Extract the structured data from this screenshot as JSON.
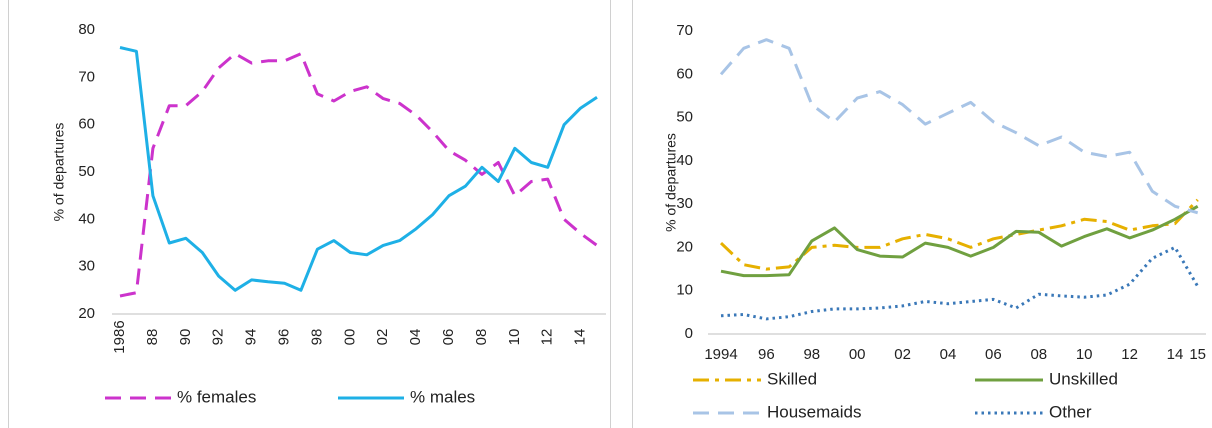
{
  "chart_data": [
    {
      "type": "line",
      "y_label": "% of departures",
      "legend": "bottom",
      "grid": false,
      "x_label_rotation": "vertical",
      "categories": [
        "1986",
        null,
        "88",
        null,
        "90",
        null,
        "92",
        null,
        "94",
        null,
        "96",
        null,
        "98",
        null,
        "00",
        null,
        "02",
        null,
        "04",
        null,
        "06",
        null,
        "08",
        null,
        "10",
        null,
        "12",
        null,
        "14",
        null
      ],
      "ylim": [
        20,
        80
      ],
      "yticks": [
        20,
        30,
        40,
        50,
        60,
        70,
        80
      ],
      "series": [
        {
          "name": "% females",
          "color": "#cc33cc",
          "line_style": "dashed",
          "values": [
            23.8,
            24.5,
            55,
            64,
            64,
            67,
            72,
            75,
            73,
            73.5,
            73.5,
            75,
            66.5,
            65,
            67,
            68,
            65.5,
            64.5,
            62,
            58.5,
            54.5,
            52.5,
            49.5,
            52,
            45,
            48,
            48.5,
            40,
            37,
            34.5
          ]
        },
        {
          "name": "% males",
          "color": "#1eb0e6",
          "line_style": "solid",
          "values": [
            76.3,
            75.5,
            45,
            35,
            36,
            33,
            28,
            25,
            27.2,
            26.8,
            26.5,
            25,
            33.7,
            35.5,
            33,
            32.5,
            34.5,
            35.5,
            38,
            41,
            45,
            47,
            51,
            48,
            55,
            52,
            51,
            60,
            63.5,
            65.8
          ]
        }
      ]
    },
    {
      "type": "line",
      "y_label": "% of departures",
      "legend": "bottom",
      "grid": false,
      "x_label_rotation": "horizontal",
      "categories": [
        "1994",
        null,
        "96",
        null,
        "98",
        null,
        "00",
        null,
        "02",
        null,
        "04",
        null,
        "06",
        null,
        "08",
        null,
        "10",
        null,
        "12",
        null,
        "14",
        "15"
      ],
      "ylim": [
        0,
        70
      ],
      "yticks": [
        0,
        10,
        20,
        30,
        40,
        50,
        60,
        70
      ],
      "series": [
        {
          "name": "Skilled",
          "color": "#e6b000",
          "line_style": "dashdot",
          "values": [
            21,
            16,
            15,
            15.5,
            20,
            20.5,
            20,
            20,
            22,
            23,
            22,
            20,
            22,
            23,
            24,
            25,
            26.5,
            26,
            24,
            25,
            25.5,
            31
          ]
        },
        {
          "name": "Unskilled",
          "color": "#70a040",
          "line_style": "solid",
          "values": [
            14.5,
            13.5,
            13.5,
            13.7,
            21.5,
            24.5,
            19.5,
            18,
            17.8,
            21,
            20,
            18,
            20,
            23.7,
            23.5,
            20.3,
            22.5,
            24.3,
            22.2,
            24,
            26.5,
            29.5
          ]
        },
        {
          "name": "Housemaids",
          "color": "#a8c4e6",
          "line_style": "dashed",
          "values": [
            60,
            66,
            68,
            66,
            53,
            49,
            54.5,
            56,
            53,
            48.5,
            51,
            53.5,
            49,
            46.5,
            43.5,
            45.5,
            42,
            41,
            42,
            33,
            29.5,
            28
          ]
        },
        {
          "name": "Other",
          "color": "#3a78b8",
          "line_style": "dotted",
          "values": [
            4.2,
            4.5,
            3.5,
            4,
            5.2,
            5.8,
            5.8,
            6,
            6.5,
            7.5,
            7,
            7.5,
            8,
            6,
            9.2,
            8.8,
            8.5,
            9,
            11.5,
            17.5,
            20,
            11
          ]
        }
      ]
    }
  ]
}
